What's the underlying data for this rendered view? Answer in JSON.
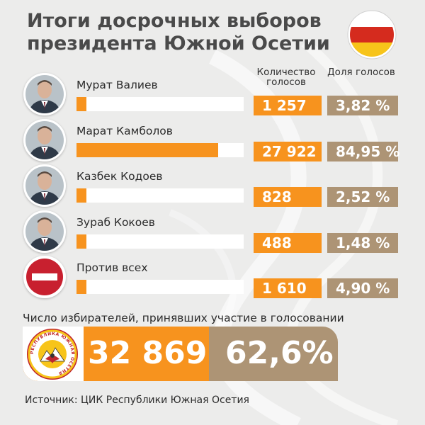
{
  "title": "Итоги досрочных выборов президента Южной Осетии",
  "column_headers": {
    "votes": "Количество голосов",
    "share": "Доля голосов"
  },
  "colors": {
    "orange": "#f7931e",
    "tan": "#ad9475",
    "background": "#ececeb",
    "flag_red": "#d52b1e",
    "flag_yellow": "#f7c41a"
  },
  "chart_data": {
    "type": "bar",
    "categories": [
      "Мурат Валиев",
      "Марат Камболов",
      "Казбек Кодоев",
      "Зураб Кокоев",
      "Против всех"
    ],
    "series": [
      {
        "name": "Количество голосов",
        "values": [
          1257,
          27922,
          828,
          488,
          1610
        ]
      },
      {
        "name": "Доля голосов",
        "values": [
          3.82,
          84.95,
          2.52,
          1.48,
          4.9
        ]
      }
    ],
    "candidates": [
      {
        "name": "Мурат Валиев",
        "votes": 1257,
        "votes_label": "1 257",
        "share": 3.82,
        "share_label": "3,82 %",
        "avatar": "person-photo"
      },
      {
        "name": "Марат Камболов",
        "votes": 27922,
        "votes_label": "27 922",
        "share": 84.95,
        "share_label": "84,95 %",
        "avatar": "person-photo"
      },
      {
        "name": "Казбек Кодоев",
        "votes": 828,
        "votes_label": "828",
        "share": 2.52,
        "share_label": "2,52 %",
        "avatar": "person-photo"
      },
      {
        "name": "Зураб Кокоев",
        "votes": 488,
        "votes_label": "488",
        "share": 1.48,
        "share_label": "1,48 %",
        "avatar": "person-photo"
      },
      {
        "name": "Против всех",
        "votes": 1610,
        "votes_label": "1 610",
        "share": 4.9,
        "share_label": "4,90 %",
        "avatar": "no-entry-icon"
      }
    ],
    "bar_max_share": 100
  },
  "turnout": {
    "label": "Число избирателей, принявших участие в голосовании",
    "voters": "32 869",
    "percent": "62,6%",
    "emblem_text": "РЕСПУБЛИКА ЮЖНАЯ ОСЕТИЯ"
  },
  "source": "Источник: ЦИК Республики Южная Осетия"
}
